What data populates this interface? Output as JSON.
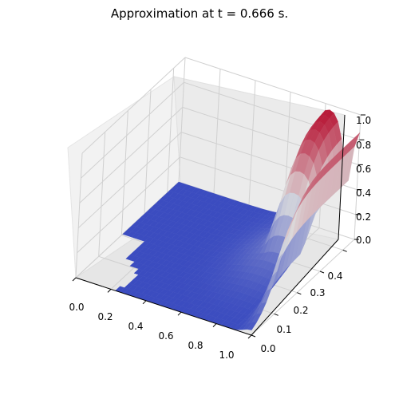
{
  "chart_data": {
    "type": "surface3d",
    "title": "Approximation at t = 0.666 s.",
    "colormap": "coolwarm",
    "colormap_colors": {
      "low": "#3b4cc0",
      "mid": "#dddddd",
      "high": "#b40426"
    },
    "background_panes": "#f2f2f2",
    "grid": true,
    "axes": {
      "x": {
        "label": "",
        "ticks": [
          "0.0",
          "0.2",
          "0.4",
          "0.6",
          "0.8",
          "1.0"
        ],
        "range": [
          0,
          1
        ]
      },
      "y": {
        "label": "",
        "ticks": [
          "0.0",
          "0.1",
          "0.2",
          "0.3",
          "0.4"
        ],
        "range": [
          0,
          0.45
        ]
      },
      "z": {
        "label": "",
        "ticks": [
          "0.0",
          "0.2",
          "0.4",
          "0.6",
          "0.8",
          "1.0"
        ],
        "range": [
          0,
          1
        ]
      }
    },
    "surface_features": [
      {
        "description": "flat region",
        "z_approx": 0.0
      },
      {
        "description": "ridge plateau",
        "x_approx": [
          0.75,
          0.95
        ],
        "y_approx": [
          0.35,
          0.45
        ],
        "z_approx": 1.0
      },
      {
        "description": "secondary ridge",
        "x_approx": [
          0.95,
          1.0
        ],
        "y_approx": [
          0.1,
          0.45
        ],
        "z_approx": 0.9
      }
    ]
  }
}
